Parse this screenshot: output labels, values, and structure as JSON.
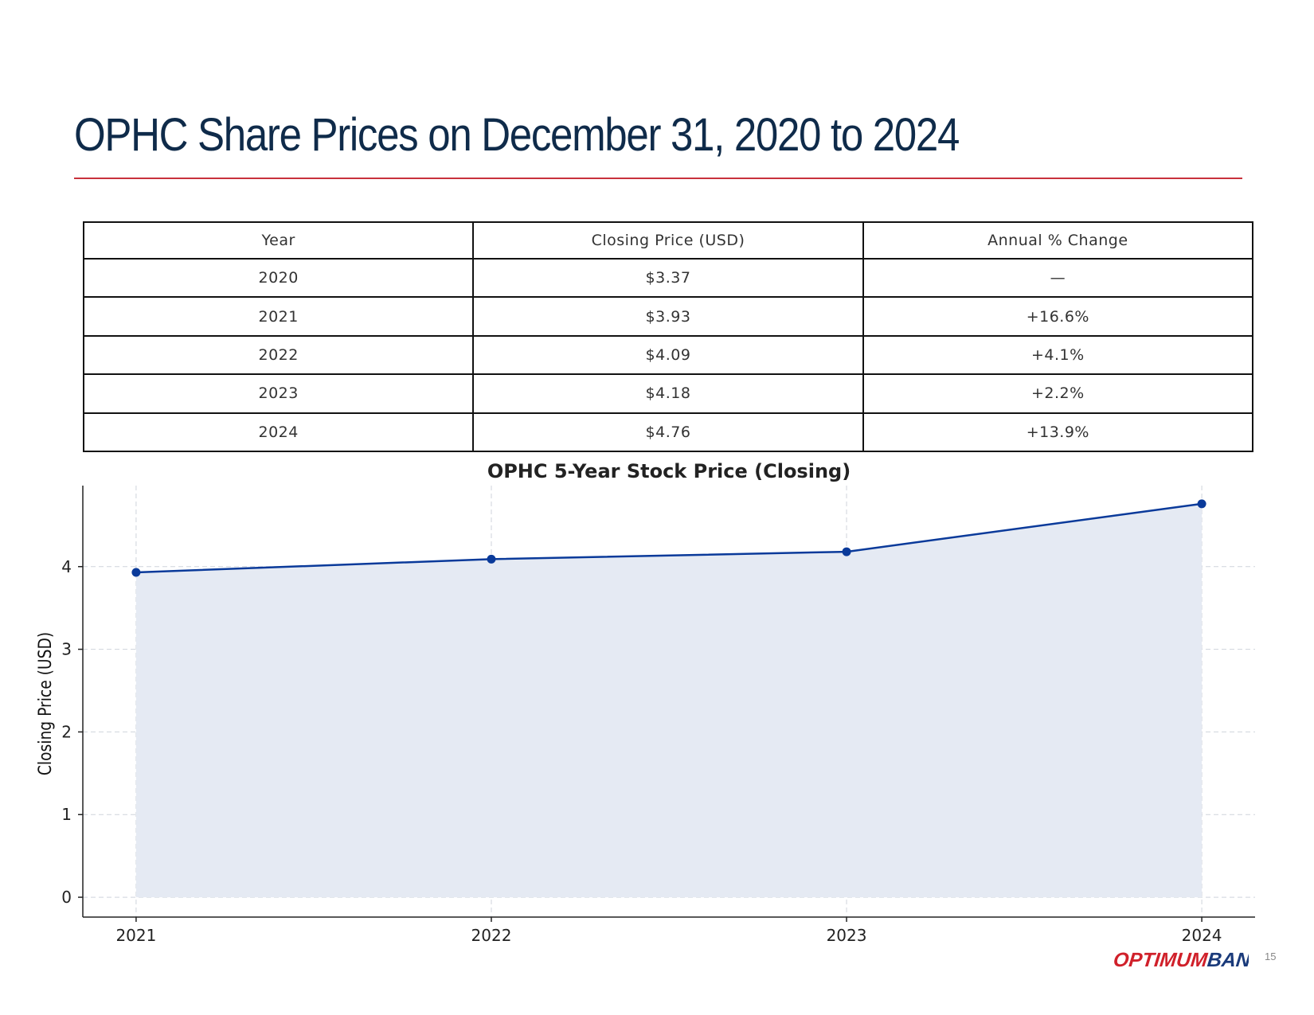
{
  "slide": {
    "title": "OPHC Share Prices on December 31, 2020 to 2024",
    "page_number": "15",
    "logo_text": "OPTIMUMBANK",
    "colors": {
      "title": "#0f2b4a",
      "rule": "#c8323c",
      "series": "#0a3a9a",
      "fill": "#e5eaf3",
      "logo_red": "#d0202a",
      "logo_navy": "#1a3a7a"
    }
  },
  "table": {
    "headers": [
      "Year",
      "Closing Price (USD)",
      "Annual % Change"
    ],
    "rows": [
      [
        "2020",
        "$3.37",
        "—"
      ],
      [
        "2021",
        "$3.93",
        "+16.6%"
      ],
      [
        "2022",
        "$4.09",
        "+4.1%"
      ],
      [
        "2023",
        "$4.18",
        "+2.2%"
      ],
      [
        "2024",
        "$4.76",
        "+13.9%"
      ]
    ]
  },
  "chart_data": {
    "type": "area",
    "title": "OPHC 5-Year Stock Price (Closing)",
    "xlabel": "",
    "ylabel": "Closing Price (USD)",
    "x": [
      "2021",
      "2022",
      "2023",
      "2024"
    ],
    "values": [
      3.93,
      4.09,
      4.18,
      4.76
    ],
    "yticks": [
      0,
      1,
      2,
      3,
      4
    ],
    "ylim": [
      -0.24,
      4.98
    ],
    "xlim": [
      2020.85,
      2024.15
    ],
    "grid": true,
    "markers": true
  }
}
